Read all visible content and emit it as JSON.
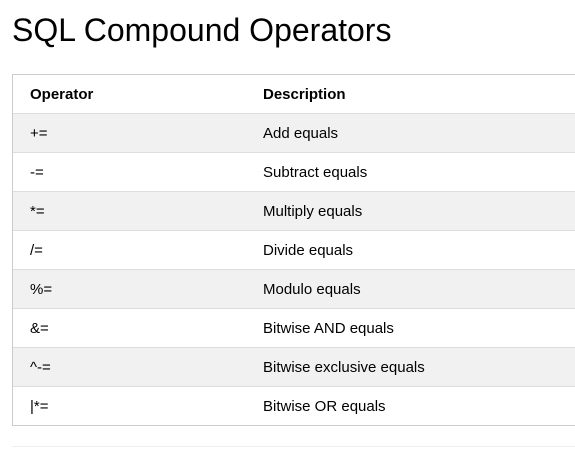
{
  "page": {
    "title": "SQL Compound Operators"
  },
  "table": {
    "headers": {
      "operator": "Operator",
      "description": "Description"
    },
    "rows": [
      {
        "operator": "+=",
        "description": "Add equals"
      },
      {
        "operator": "-=",
        "description": "Subtract equals"
      },
      {
        "operator": "*=",
        "description": "Multiply equals"
      },
      {
        "operator": "/=",
        "description": "Divide equals"
      },
      {
        "operator": "%=",
        "description": "Modulo equals"
      },
      {
        "operator": "&=",
        "description": "Bitwise AND equals"
      },
      {
        "operator": "^-=",
        "description": "Bitwise exclusive equals"
      },
      {
        "operator": "|*=",
        "description": "Bitwise OR equals"
      }
    ]
  },
  "colors": {
    "stripe": "#f1f1f1",
    "border": "#cccccc",
    "text": "#000000"
  }
}
